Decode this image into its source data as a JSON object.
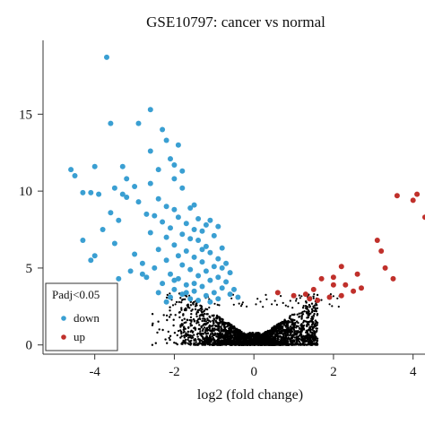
{
  "chart_data": {
    "type": "scatter",
    "title": "GSE10797: cancer vs normal",
    "xlabel": "log2 (fold change)",
    "ylabel": "",
    "xlim": [
      -5.3,
      4.3
    ],
    "ylim": [
      -0.6,
      19.8
    ],
    "x_ticks": [
      -4,
      -2,
      0,
      2,
      4
    ],
    "y_ticks": [
      0,
      5,
      10,
      15
    ],
    "grid": false,
    "legend": {
      "title": "Padj<0.05",
      "position": "bottom-left",
      "entries": [
        {
          "label": "down",
          "color": "#3a9fd2"
        },
        {
          "label": "up",
          "color": "#c0302b"
        }
      ]
    },
    "series": [
      {
        "name": "down",
        "color": "#3a9fd2",
        "points": [
          [
            -3.7,
            18.7
          ],
          [
            -2.6,
            15.3
          ],
          [
            -3.6,
            14.4
          ],
          [
            -2.9,
            14.4
          ],
          [
            -2.3,
            14.0
          ],
          [
            -2.2,
            13.3
          ],
          [
            -1.9,
            13.0
          ],
          [
            -2.6,
            12.6
          ],
          [
            -2.1,
            12.1
          ],
          [
            -2.0,
            11.7
          ],
          [
            -1.8,
            11.3
          ],
          [
            -3.3,
            11.6
          ],
          [
            -2.4,
            11.4
          ],
          [
            -4.0,
            11.6
          ],
          [
            -4.6,
            11.4
          ],
          [
            -4.5,
            11.0
          ],
          [
            -2.0,
            10.8
          ],
          [
            -3.2,
            10.8
          ],
          [
            -2.6,
            10.5
          ],
          [
            -3.5,
            10.2
          ],
          [
            -3.0,
            10.3
          ],
          [
            -1.8,
            10.2
          ],
          [
            -4.3,
            9.9
          ],
          [
            -4.1,
            9.9
          ],
          [
            -3.9,
            9.8
          ],
          [
            -3.3,
            9.8
          ],
          [
            -3.2,
            9.6
          ],
          [
            -2.4,
            9.5
          ],
          [
            -2.9,
            9.3
          ],
          [
            -1.5,
            9.1
          ],
          [
            -2.2,
            9.0
          ],
          [
            -1.6,
            8.9
          ],
          [
            -2.0,
            8.8
          ],
          [
            -3.6,
            8.6
          ],
          [
            -2.7,
            8.5
          ],
          [
            -2.5,
            8.4
          ],
          [
            -1.9,
            8.3
          ],
          [
            -1.4,
            8.2
          ],
          [
            -1.1,
            8.1
          ],
          [
            -2.3,
            8.0
          ],
          [
            -1.7,
            7.9
          ],
          [
            -1.2,
            7.8
          ],
          [
            -0.9,
            7.7
          ],
          [
            -2.1,
            7.6
          ],
          [
            -1.5,
            7.5
          ],
          [
            -1.3,
            7.4
          ],
          [
            -2.6,
            7.3
          ],
          [
            -1.8,
            7.2
          ],
          [
            -1.0,
            7.1
          ],
          [
            -2.2,
            7.0
          ],
          [
            -1.6,
            6.9
          ],
          [
            -1.4,
            6.8
          ],
          [
            -4.3,
            6.8
          ],
          [
            -3.5,
            6.6
          ],
          [
            -2.0,
            6.5
          ],
          [
            -1.2,
            6.4
          ],
          [
            -0.8,
            6.3
          ],
          [
            -2.4,
            6.2
          ],
          [
            -1.7,
            6.1
          ],
          [
            -1.1,
            6.0
          ],
          [
            -3.0,
            5.9
          ],
          [
            -1.9,
            5.8
          ],
          [
            -1.5,
            5.7
          ],
          [
            -0.9,
            5.6
          ],
          [
            -2.2,
            5.5
          ],
          [
            -1.3,
            5.4
          ],
          [
            -0.7,
            5.3
          ],
          [
            -4.1,
            5.5
          ],
          [
            -4.0,
            5.8
          ],
          [
            -2.8,
            5.3
          ],
          [
            -1.8,
            5.2
          ],
          [
            -1.0,
            5.1
          ],
          [
            -2.5,
            5.0
          ],
          [
            -1.6,
            4.9
          ],
          [
            -1.2,
            4.8
          ],
          [
            -0.6,
            4.7
          ],
          [
            -3.1,
            4.8
          ],
          [
            -2.1,
            4.6
          ],
          [
            -1.4,
            4.5
          ],
          [
            -0.9,
            4.4
          ],
          [
            -2.7,
            4.4
          ],
          [
            -1.9,
            4.3
          ],
          [
            -1.1,
            4.2
          ],
          [
            -0.7,
            4.1
          ],
          [
            -2.3,
            4.0
          ],
          [
            -1.7,
            3.9
          ],
          [
            -1.3,
            3.8
          ],
          [
            -0.8,
            3.7
          ],
          [
            -3.4,
            4.3
          ],
          [
            -2.0,
            3.6
          ],
          [
            -1.5,
            3.5
          ],
          [
            -1.0,
            3.4
          ],
          [
            -2.4,
            3.4
          ],
          [
            -1.8,
            3.3
          ],
          [
            -1.2,
            3.2
          ],
          [
            -0.6,
            3.3
          ],
          [
            -2.1,
            3.1
          ],
          [
            -1.6,
            3.0
          ],
          [
            -0.9,
            3.0
          ],
          [
            -1.4,
            2.9
          ],
          [
            -2.2,
            2.8
          ],
          [
            -1.1,
            2.8
          ],
          [
            -1.7,
            3.4
          ],
          [
            -2.8,
            4.6
          ],
          [
            -3.8,
            7.5
          ],
          [
            -3.4,
            8.1
          ],
          [
            -1.3,
            6.2
          ],
          [
            -0.8,
            5.0
          ],
          [
            -2.0,
            4.2
          ],
          [
            -1.5,
            4.0
          ],
          [
            -0.5,
            3.6
          ],
          [
            -0.4,
            3.1
          ]
        ]
      },
      {
        "name": "up",
        "color": "#c0302b",
        "points": [
          [
            3.6,
            9.7
          ],
          [
            4.1,
            9.8
          ],
          [
            4.0,
            9.4
          ],
          [
            4.3,
            8.3
          ],
          [
            3.1,
            6.8
          ],
          [
            3.2,
            6.1
          ],
          [
            3.3,
            5.0
          ],
          [
            3.5,
            4.3
          ],
          [
            2.2,
            5.1
          ],
          [
            2.6,
            4.6
          ],
          [
            2.0,
            4.4
          ],
          [
            1.7,
            4.3
          ],
          [
            2.3,
            3.9
          ],
          [
            1.5,
            3.6
          ],
          [
            2.5,
            3.5
          ],
          [
            2.2,
            3.2
          ],
          [
            1.9,
            3.1
          ],
          [
            1.3,
            3.3
          ],
          [
            1.0,
            3.2
          ],
          [
            1.4,
            3.0
          ],
          [
            1.6,
            2.9
          ],
          [
            0.6,
            3.4
          ],
          [
            2.7,
            3.7
          ],
          [
            2.0,
            3.9
          ]
        ]
      }
    ],
    "background_cloud": {
      "name": "not significant",
      "color": "#000000",
      "description_points": "dense V-shaped cloud of non-significant genes centred near x=0"
    }
  }
}
